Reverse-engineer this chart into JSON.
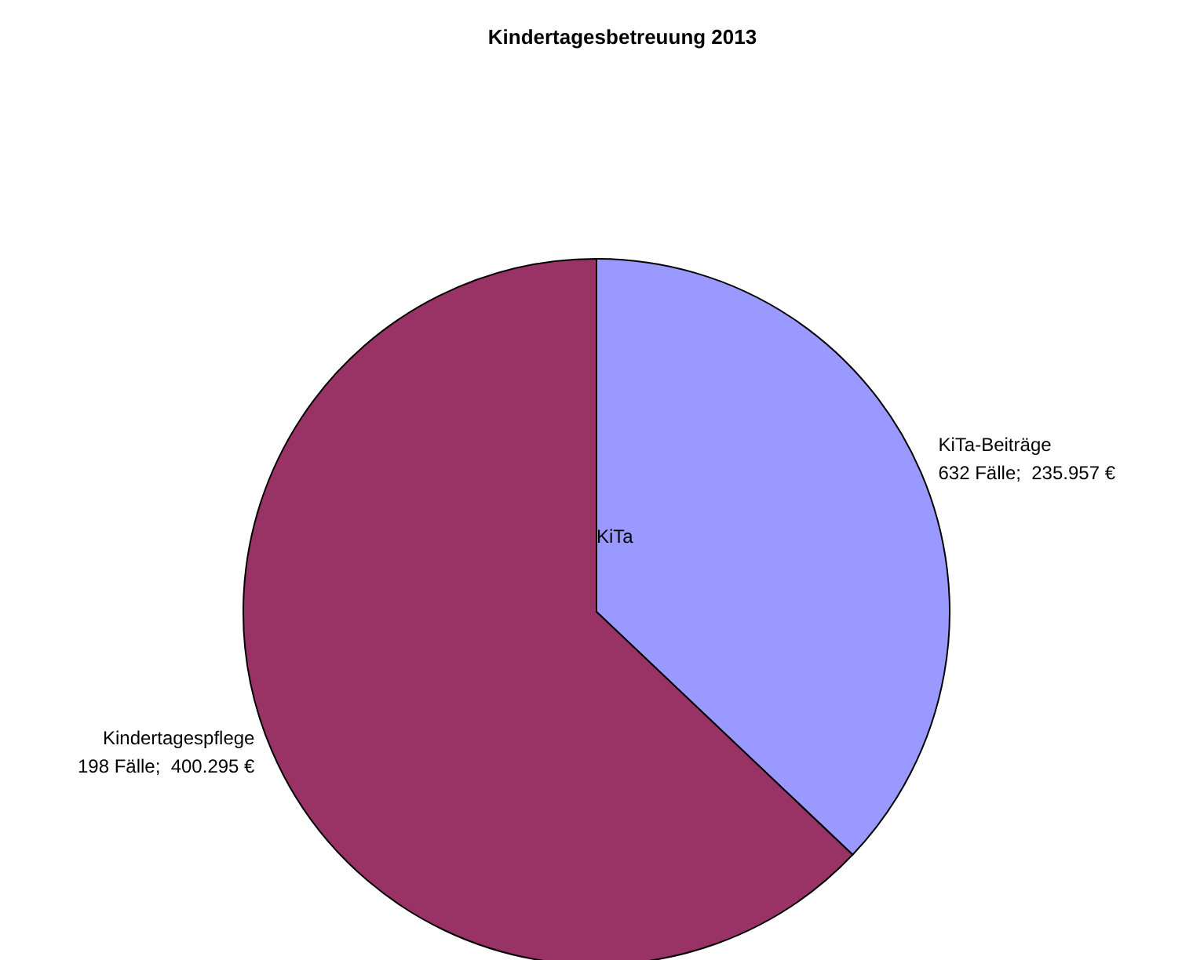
{
  "chart_data": {
    "type": "pie",
    "title": "Kindertagesbetreuung 2013",
    "categories": [
      "KiTa-Beiträge",
      "Kindertagespflege"
    ],
    "values": [
      235957,
      400295
    ],
    "value_labels": [
      "632 Fälle;  235.957 €",
      "198 Fälle;  400.295 €"
    ],
    "colors": [
      "#9999ff",
      "#993366"
    ],
    "annotations": [
      "KiTa"
    ]
  }
}
